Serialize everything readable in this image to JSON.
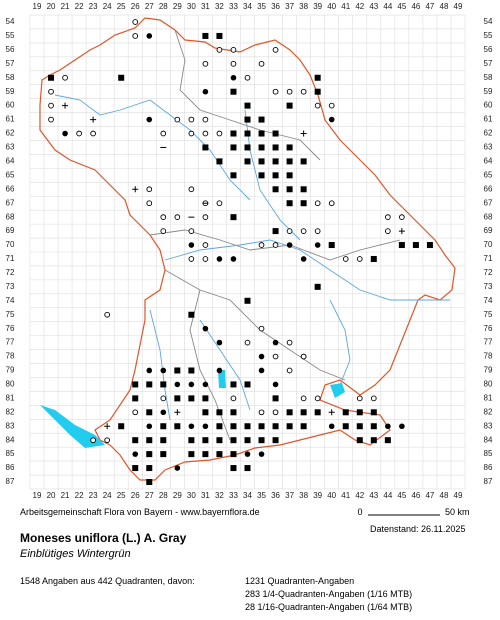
{
  "map": {
    "x_labels": [
      19,
      20,
      21,
      22,
      23,
      24,
      25,
      26,
      27,
      28,
      29,
      30,
      31,
      32,
      33,
      34,
      35,
      36,
      37,
      38,
      39,
      40,
      41,
      42,
      43,
      44,
      45,
      46,
      47,
      48,
      49
    ],
    "y_labels": [
      54,
      55,
      56,
      57,
      58,
      59,
      60,
      61,
      62,
      63,
      64,
      65,
      66,
      67,
      68,
      69,
      70,
      71,
      72,
      73,
      74,
      75,
      76,
      77,
      78,
      79,
      80,
      81,
      82,
      83,
      84,
      85,
      86,
      87
    ],
    "squares": [
      [
        31,
        55
      ],
      [
        32,
        55
      ],
      [
        33,
        59
      ],
      [
        34,
        60
      ],
      [
        34,
        61
      ],
      [
        35,
        61
      ],
      [
        33,
        62
      ],
      [
        34,
        62
      ],
      [
        35,
        62
      ],
      [
        36,
        62
      ],
      [
        31,
        63
      ],
      [
        33,
        63
      ],
      [
        34,
        63
      ],
      [
        35,
        63
      ],
      [
        36,
        63
      ],
      [
        37,
        63
      ],
      [
        32,
        64
      ],
      [
        34,
        64
      ],
      [
        35,
        64
      ],
      [
        36,
        64
      ],
      [
        37,
        64
      ],
      [
        38,
        64
      ],
      [
        33,
        65
      ],
      [
        35,
        65
      ],
      [
        36,
        65
      ],
      [
        37,
        65
      ],
      [
        36,
        66
      ],
      [
        37,
        66
      ],
      [
        38,
        66
      ],
      [
        37,
        67
      ],
      [
        38,
        67
      ],
      [
        33,
        68
      ],
      [
        36,
        69
      ],
      [
        39,
        58
      ],
      [
        39,
        59
      ],
      [
        37,
        60
      ],
      [
        25,
        58
      ],
      [
        20,
        58
      ],
      [
        34,
        74
      ],
      [
        39,
        73
      ],
      [
        30,
        75
      ],
      [
        40,
        70
      ],
      [
        43,
        71
      ],
      [
        45,
        70
      ],
      [
        46,
        70
      ],
      [
        47,
        70
      ],
      [
        26,
        80
      ],
      [
        27,
        80
      ],
      [
        28,
        80
      ],
      [
        26,
        81
      ],
      [
        27,
        82
      ],
      [
        28,
        83
      ],
      [
        29,
        83
      ],
      [
        30,
        84
      ],
      [
        31,
        84
      ],
      [
        32,
        84
      ],
      [
        33,
        84
      ],
      [
        34,
        84
      ],
      [
        35,
        84
      ],
      [
        36,
        84
      ],
      [
        32,
        83
      ],
      [
        33,
        83
      ],
      [
        34,
        83
      ],
      [
        35,
        83
      ],
      [
        36,
        83
      ],
      [
        37,
        83
      ],
      [
        38,
        83
      ],
      [
        37,
        82
      ],
      [
        38,
        82
      ],
      [
        39,
        82
      ],
      [
        41,
        82
      ],
      [
        42,
        82
      ],
      [
        43,
        82
      ],
      [
        41,
        83
      ],
      [
        42,
        83
      ],
      [
        43,
        83
      ],
      [
        42,
        84
      ],
      [
        43,
        84
      ],
      [
        44,
        84
      ],
      [
        27,
        84
      ],
      [
        28,
        84
      ],
      [
        27,
        85
      ],
      [
        28,
        85
      ],
      [
        27,
        86
      ],
      [
        26,
        86
      ],
      [
        27,
        87
      ],
      [
        30,
        85
      ],
      [
        31,
        85
      ],
      [
        32,
        85
      ],
      [
        33,
        85
      ],
      [
        33,
        86
      ],
      [
        34,
        86
      ],
      [
        29,
        81
      ],
      [
        30,
        81
      ],
      [
        31,
        81
      ],
      [
        31,
        82
      ],
      [
        32,
        82
      ],
      [
        33,
        82
      ],
      [
        29,
        79
      ],
      [
        30,
        79
      ],
      [
        33,
        80
      ],
      [
        34,
        80
      ],
      [
        36,
        81
      ],
      [
        26,
        84
      ],
      [
        25,
        83
      ]
    ],
    "dots": [
      [
        21,
        62
      ],
      [
        27,
        61
      ],
      [
        27,
        55
      ],
      [
        31,
        59
      ],
      [
        33,
        58
      ],
      [
        40,
        61
      ],
      [
        32,
        71
      ],
      [
        33,
        71
      ],
      [
        30,
        70
      ],
      [
        38,
        71
      ],
      [
        39,
        70
      ],
      [
        27,
        79
      ],
      [
        28,
        79
      ],
      [
        29,
        80
      ],
      [
        30,
        80
      ],
      [
        31,
        80
      ],
      [
        32,
        79
      ],
      [
        35,
        79
      ],
      [
        36,
        80
      ],
      [
        27,
        83
      ],
      [
        28,
        82
      ],
      [
        30,
        83
      ],
      [
        31,
        83
      ],
      [
        34,
        85
      ],
      [
        35,
        85
      ],
      [
        26,
        85
      ],
      [
        37,
        70
      ],
      [
        29,
        86
      ],
      [
        40,
        83
      ],
      [
        44,
        83
      ],
      [
        45,
        83
      ],
      [
        31,
        76
      ],
      [
        32,
        77
      ],
      [
        35,
        78
      ],
      [
        36,
        77
      ],
      [
        38,
        78
      ]
    ],
    "open_circles": [
      [
        20,
        59
      ],
      [
        20,
        60
      ],
      [
        20,
        61
      ],
      [
        21,
        58
      ],
      [
        26,
        54
      ],
      [
        26,
        55
      ],
      [
        31,
        57
      ],
      [
        32,
        56
      ],
      [
        33,
        56
      ],
      [
        33,
        57
      ],
      [
        34,
        58
      ],
      [
        35,
        57
      ],
      [
        36,
        56
      ],
      [
        36,
        59
      ],
      [
        37,
        59
      ],
      [
        38,
        59
      ],
      [
        39,
        60
      ],
      [
        40,
        60
      ],
      [
        29,
        61
      ],
      [
        30,
        61
      ],
      [
        31,
        61
      ],
      [
        28,
        62
      ],
      [
        30,
        62
      ],
      [
        31,
        62
      ],
      [
        32,
        62
      ],
      [
        30,
        66
      ],
      [
        31,
        67
      ],
      [
        32,
        67
      ],
      [
        27,
        66
      ],
      [
        27,
        67
      ],
      [
        28,
        68
      ],
      [
        29,
        68
      ],
      [
        28,
        69
      ],
      [
        30,
        69
      ],
      [
        31,
        68
      ],
      [
        31,
        70
      ],
      [
        31,
        71
      ],
      [
        30,
        71
      ],
      [
        35,
        70
      ],
      [
        36,
        70
      ],
      [
        37,
        69
      ],
      [
        38,
        69
      ],
      [
        39,
        67
      ],
      [
        40,
        67
      ],
      [
        39,
        69
      ],
      [
        44,
        68
      ],
      [
        45,
        68
      ],
      [
        44,
        69
      ],
      [
        41,
        71
      ],
      [
        42,
        71
      ],
      [
        24,
        75
      ],
      [
        34,
        77
      ],
      [
        35,
        76
      ],
      [
        37,
        77
      ],
      [
        36,
        78
      ],
      [
        37,
        79
      ],
      [
        38,
        78
      ],
      [
        24,
        84
      ],
      [
        23,
        84
      ],
      [
        33,
        81
      ],
      [
        38,
        81
      ],
      [
        28,
        81
      ],
      [
        26,
        82
      ],
      [
        35,
        82
      ],
      [
        36,
        82
      ],
      [
        39,
        81
      ],
      [
        42,
        81
      ],
      [
        43,
        81
      ],
      [
        22,
        62
      ],
      [
        23,
        62
      ]
    ],
    "pluses": [
      [
        21,
        60
      ],
      [
        23,
        61
      ],
      [
        26,
        66
      ],
      [
        38,
        62
      ],
      [
        45,
        69
      ],
      [
        29,
        82
      ],
      [
        24,
        83
      ],
      [
        40,
        82
      ]
    ],
    "minuses": [
      [
        28,
        63
      ],
      [
        31,
        67
      ],
      [
        30,
        68
      ]
    ]
  },
  "footer": {
    "credit": "Arbeitsgemeinschaft Flora von Bayern - www.bayernflora.de",
    "scale_start": "0",
    "scale_end": "50 km",
    "date": "Datenstand: 26.11.2025",
    "species": "Moneses uniflora (L.) A. Gray",
    "common_name": "Einblütiges Wintergrün",
    "summary": "1548 Angaben aus 442 Quadranten, davon:",
    "detail_1": "1231 Quadranten-Angaben",
    "detail_2": "283 1/4-Quadranten-Angaben (1/16 MTB)",
    "detail_3": "28 1/16-Quadranten-Angaben (1/64 MTB)"
  }
}
